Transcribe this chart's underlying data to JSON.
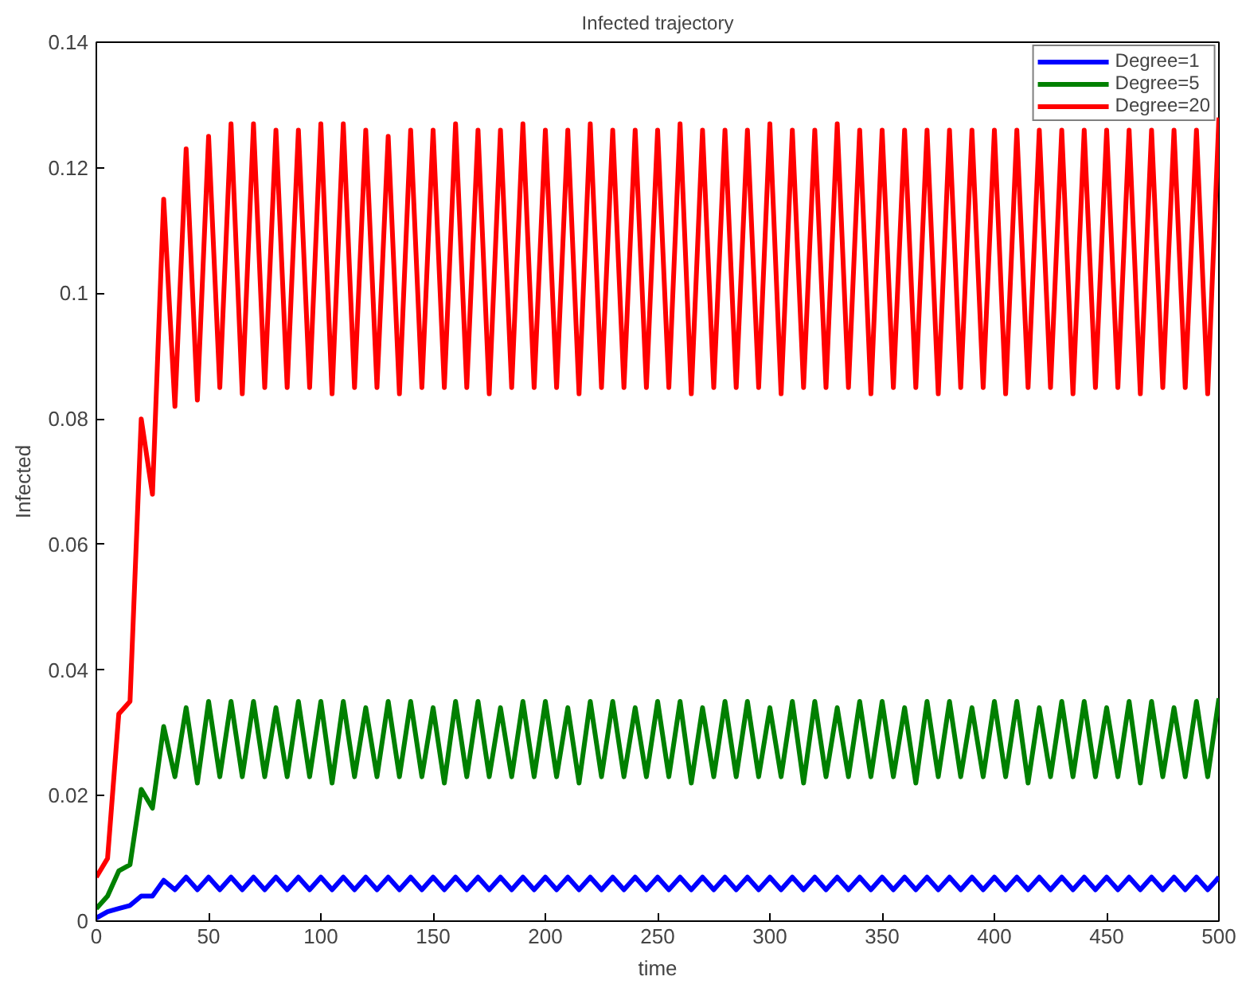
{
  "chart_data": {
    "type": "line",
    "title": "Infected trajectory",
    "xlabel": "time",
    "ylabel": "Infected",
    "x": [
      0,
      5,
      10,
      15,
      20,
      25,
      30,
      35,
      40,
      45,
      50,
      55,
      60,
      65,
      70,
      75,
      80,
      85,
      90,
      95,
      100,
      105,
      110,
      115,
      120,
      125,
      130,
      135,
      140,
      145,
      150,
      155,
      160,
      165,
      170,
      175,
      180,
      185,
      190,
      195,
      200,
      205,
      210,
      215,
      220,
      225,
      230,
      235,
      240,
      245,
      250,
      255,
      260,
      265,
      270,
      275,
      280,
      285,
      290,
      295,
      300,
      305,
      310,
      315,
      320,
      325,
      330,
      335,
      340,
      345,
      350,
      355,
      360,
      365,
      370,
      375,
      380,
      385,
      390,
      395,
      400,
      405,
      410,
      415,
      420,
      425,
      430,
      435,
      440,
      445,
      450,
      455,
      460,
      465,
      470,
      475,
      480,
      485,
      490,
      495,
      500
    ],
    "series": [
      {
        "name": "Degree=1",
        "color": "#0000ff",
        "values": [
          0.0005,
          0.0015,
          0.002,
          0.0025,
          0.004,
          0.004,
          0.0065,
          0.005,
          0.007,
          0.005,
          0.007,
          0.005,
          0.007,
          0.005,
          0.007,
          0.005,
          0.007,
          0.005,
          0.007,
          0.005,
          0.007,
          0.005,
          0.007,
          0.005,
          0.007,
          0.005,
          0.007,
          0.005,
          0.007,
          0.005,
          0.007,
          0.005,
          0.007,
          0.005,
          0.007,
          0.005,
          0.007,
          0.005,
          0.007,
          0.005,
          0.007,
          0.005,
          0.007,
          0.005,
          0.007,
          0.005,
          0.007,
          0.005,
          0.007,
          0.005,
          0.007,
          0.005,
          0.007,
          0.005,
          0.007,
          0.005,
          0.007,
          0.005,
          0.007,
          0.005,
          0.007,
          0.005,
          0.007,
          0.005,
          0.007,
          0.005,
          0.007,
          0.005,
          0.007,
          0.005,
          0.007,
          0.005,
          0.007,
          0.005,
          0.007,
          0.005,
          0.007,
          0.005,
          0.007,
          0.005,
          0.007,
          0.005,
          0.007,
          0.005,
          0.007,
          0.005,
          0.007,
          0.005,
          0.007,
          0.005,
          0.007,
          0.005,
          0.007,
          0.005,
          0.007,
          0.005,
          0.007,
          0.005,
          0.007,
          0.005,
          0.007
        ]
      },
      {
        "name": "Degree=5",
        "color": "#008000",
        "values": [
          0.002,
          0.004,
          0.008,
          0.009,
          0.021,
          0.018,
          0.031,
          0.023,
          0.034,
          0.022,
          0.035,
          0.023,
          0.035,
          0.023,
          0.035,
          0.023,
          0.034,
          0.023,
          0.035,
          0.023,
          0.035,
          0.022,
          0.035,
          0.023,
          0.034,
          0.023,
          0.035,
          0.023,
          0.035,
          0.023,
          0.034,
          0.022,
          0.035,
          0.023,
          0.035,
          0.023,
          0.034,
          0.023,
          0.035,
          0.023,
          0.035,
          0.023,
          0.034,
          0.022,
          0.035,
          0.023,
          0.035,
          0.023,
          0.034,
          0.023,
          0.035,
          0.023,
          0.035,
          0.022,
          0.034,
          0.023,
          0.035,
          0.023,
          0.035,
          0.023,
          0.034,
          0.023,
          0.035,
          0.022,
          0.035,
          0.023,
          0.034,
          0.023,
          0.035,
          0.023,
          0.035,
          0.023,
          0.034,
          0.022,
          0.035,
          0.023,
          0.035,
          0.023,
          0.034,
          0.023,
          0.035,
          0.023,
          0.035,
          0.022,
          0.034,
          0.023,
          0.035,
          0.023,
          0.035,
          0.023,
          0.034,
          0.023,
          0.035,
          0.022,
          0.035,
          0.023,
          0.034,
          0.023,
          0.035,
          0.023,
          0.0355
        ]
      },
      {
        "name": "Degree=20",
        "color": "#ff0000",
        "values": [
          0.007,
          0.01,
          0.033,
          0.035,
          0.08,
          0.068,
          0.115,
          0.082,
          0.123,
          0.083,
          0.125,
          0.085,
          0.127,
          0.084,
          0.127,
          0.085,
          0.126,
          0.085,
          0.126,
          0.085,
          0.127,
          0.084,
          0.127,
          0.085,
          0.126,
          0.085,
          0.125,
          0.084,
          0.126,
          0.085,
          0.126,
          0.085,
          0.127,
          0.085,
          0.126,
          0.084,
          0.126,
          0.085,
          0.127,
          0.085,
          0.126,
          0.085,
          0.126,
          0.084,
          0.127,
          0.085,
          0.126,
          0.085,
          0.126,
          0.085,
          0.126,
          0.085,
          0.127,
          0.084,
          0.126,
          0.085,
          0.126,
          0.085,
          0.126,
          0.085,
          0.127,
          0.084,
          0.126,
          0.085,
          0.126,
          0.085,
          0.127,
          0.085,
          0.126,
          0.084,
          0.126,
          0.085,
          0.126,
          0.085,
          0.126,
          0.084,
          0.126,
          0.085,
          0.126,
          0.085,
          0.126,
          0.084,
          0.126,
          0.085,
          0.126,
          0.085,
          0.126,
          0.084,
          0.126,
          0.085,
          0.126,
          0.085,
          0.126,
          0.084,
          0.126,
          0.085,
          0.126,
          0.085,
          0.126,
          0.084,
          0.128
        ]
      }
    ],
    "xlim": [
      0,
      500
    ],
    "ylim": [
      0,
      0.14
    ],
    "xticks": [
      0,
      50,
      100,
      150,
      200,
      250,
      300,
      350,
      400,
      450,
      500
    ],
    "yticks": [
      0,
      0.02,
      0.04,
      0.06,
      0.08,
      0.1,
      0.12,
      0.14
    ],
    "legend": "top right",
    "grid": false,
    "marker": "none",
    "line_style": "solid"
  }
}
